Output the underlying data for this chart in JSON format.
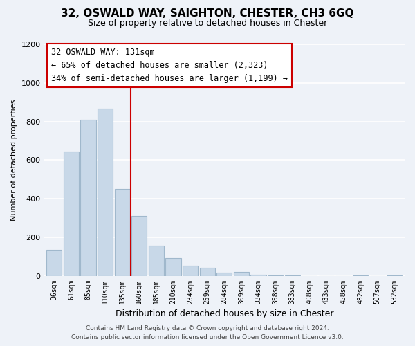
{
  "title": "32, OSWALD WAY, SAIGHTON, CHESTER, CH3 6GQ",
  "subtitle": "Size of property relative to detached houses in Chester",
  "xlabel": "Distribution of detached houses by size in Chester",
  "ylabel": "Number of detached properties",
  "bar_labels": [
    "36sqm",
    "61sqm",
    "85sqm",
    "110sqm",
    "135sqm",
    "160sqm",
    "185sqm",
    "210sqm",
    "234sqm",
    "259sqm",
    "284sqm",
    "309sqm",
    "334sqm",
    "358sqm",
    "383sqm",
    "408sqm",
    "433sqm",
    "458sqm",
    "482sqm",
    "507sqm",
    "532sqm"
  ],
  "bar_values": [
    135,
    645,
    810,
    865,
    450,
    310,
    158,
    90,
    52,
    42,
    15,
    20,
    5,
    3,
    2,
    0,
    0,
    0,
    2,
    0,
    2
  ],
  "bar_color": "#c8d8e8",
  "bar_edgecolor": "#a0b8cc",
  "vline_color": "#cc0000",
  "annotation_title": "32 OSWALD WAY: 131sqm",
  "annotation_line1": "← 65% of detached houses are smaller (2,323)",
  "annotation_line2": "34% of semi-detached houses are larger (1,199) →",
  "annotation_box_color": "#ffffff",
  "annotation_box_edgecolor": "#cc0000",
  "ylim": [
    0,
    1200
  ],
  "yticks": [
    0,
    200,
    400,
    600,
    800,
    1000,
    1200
  ],
  "footer_line1": "Contains HM Land Registry data © Crown copyright and database right 2024.",
  "footer_line2": "Contains public sector information licensed under the Open Government Licence v3.0.",
  "bg_color": "#eef2f8",
  "grid_color": "#ffffff",
  "title_fontsize": 11,
  "subtitle_fontsize": 9
}
